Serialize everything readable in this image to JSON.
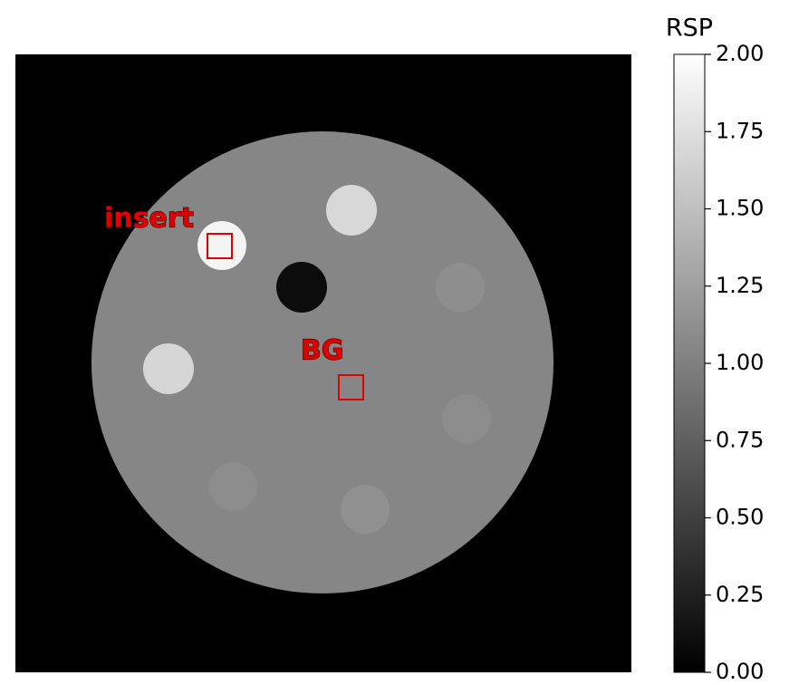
{
  "image": {
    "labels": [
      "insert",
      "BG"
    ]
  },
  "colorbar": {
    "title": "RSP",
    "lim": [
      0,
      2
    ],
    "ticks": [
      {
        "value": 0,
        "label": "0.00"
      },
      {
        "value": 0.25,
        "label": "0.25"
      },
      {
        "value": 0.5,
        "label": "0.50"
      },
      {
        "value": 0.75,
        "label": "0.75"
      },
      {
        "value": 1,
        "label": "1.00"
      },
      {
        "value": 1.25,
        "label": "1.25"
      },
      {
        "value": 1.5,
        "label": "1.50"
      },
      {
        "value": 1.75,
        "label": "1.75"
      },
      {
        "value": 2,
        "label": "2.00"
      }
    ]
  }
}
